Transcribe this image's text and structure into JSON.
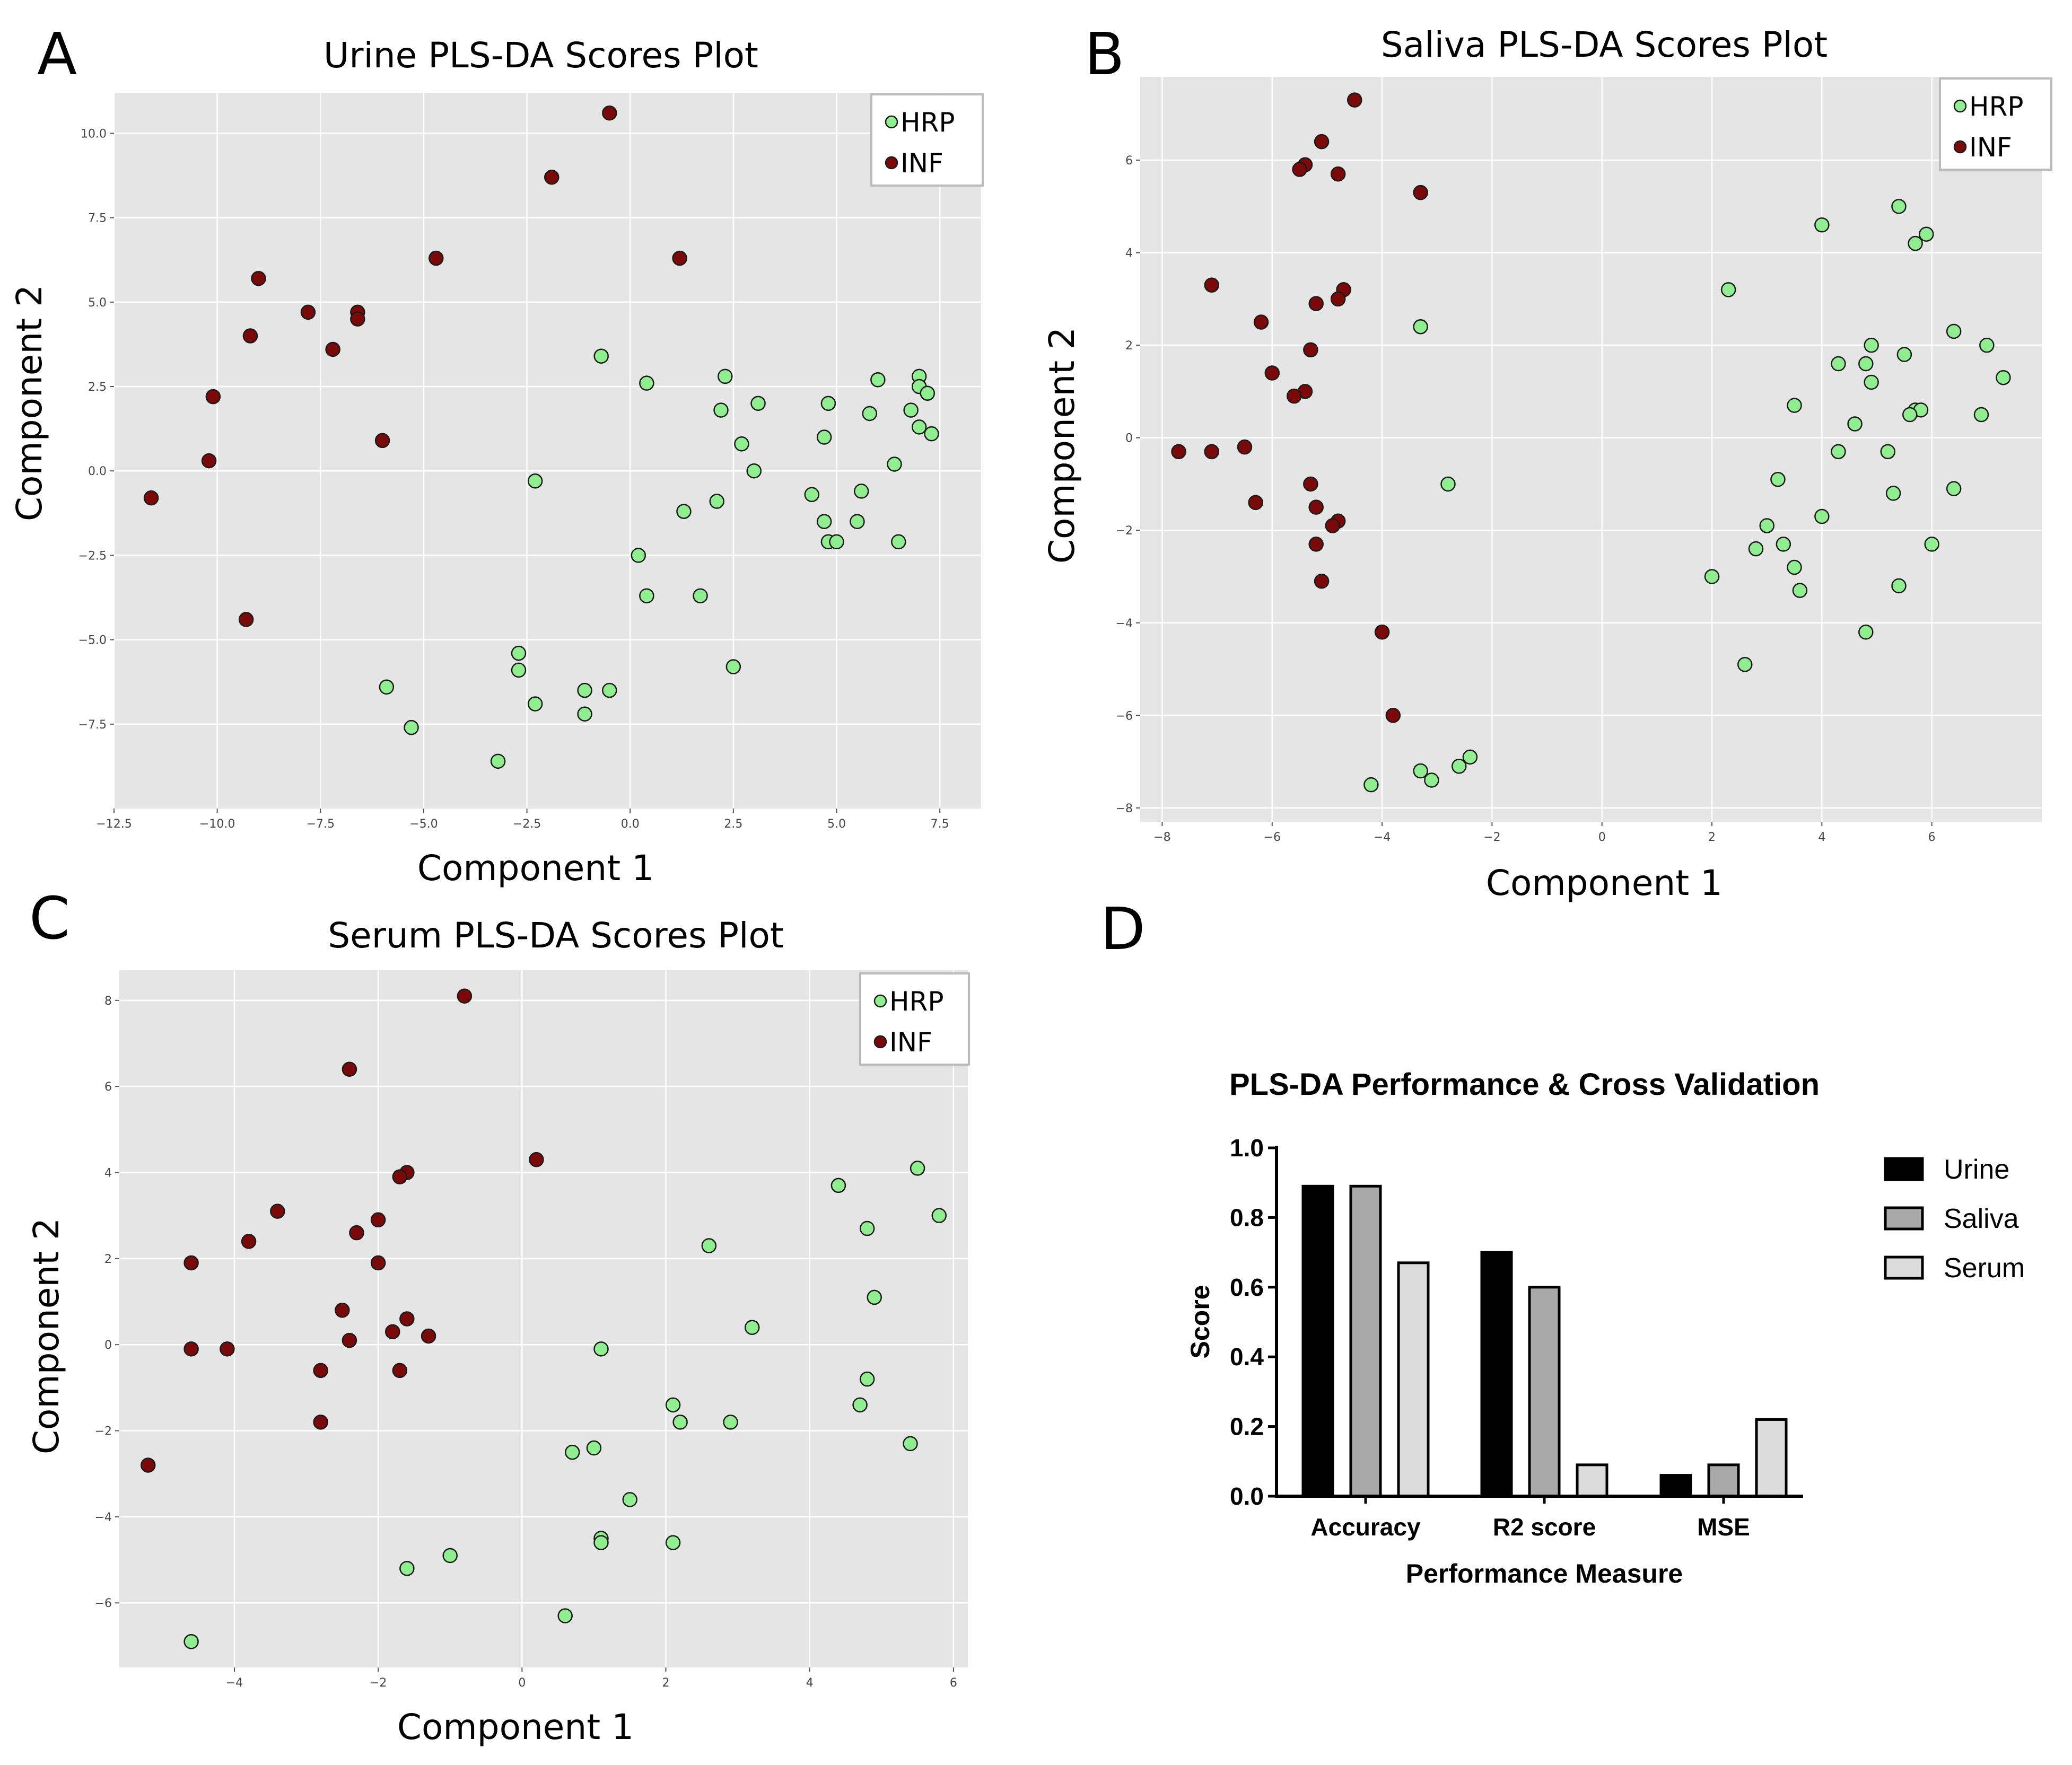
{
  "colors": {
    "hrp": "#90ee90",
    "inf": "#7a0a0a",
    "urine": "#000000",
    "saliva": "#a9a9a9",
    "serum": "#dcdcdc",
    "plot_bg": "#e5e5e5"
  },
  "chart_data": [
    {
      "id": "A",
      "panel_letter": "A",
      "type": "scatter",
      "title": "Urine PLS-DA Scores Plot",
      "xlabel": "Component 1",
      "ylabel": "Component 2",
      "xlim": [
        -12.5,
        8.5
      ],
      "ylim": [
        -10,
        11.2
      ],
      "xticks": [
        -12.5,
        -10,
        -7.5,
        -5,
        -2.5,
        0,
        2.5,
        5,
        7.5
      ],
      "xtick_labels": [
        "−12.5",
        "−10.0",
        "−7.5",
        "−5.0",
        "−2.5",
        "0.0",
        "2.5",
        "5.0",
        "7.5"
      ],
      "yticks": [
        -7.5,
        -5,
        -2.5,
        0,
        2.5,
        5,
        7.5,
        10
      ],
      "ytick_labels": [
        "−7.5",
        "−5.0",
        "−2.5",
        "0.0",
        "2.5",
        "5.0",
        "7.5",
        "10.0"
      ],
      "grid": true,
      "legend_position": "top-right",
      "legend": [
        "HRP",
        "INF"
      ],
      "series": [
        {
          "name": "HRP",
          "color": "#90ee90",
          "points": [
            [
              -0.7,
              3.4
            ],
            [
              0.4,
              2.6
            ],
            [
              2.3,
              2.8
            ],
            [
              2.2,
              1.8
            ],
            [
              3.1,
              2.0
            ],
            [
              4.8,
              2.0
            ],
            [
              5.8,
              1.7
            ],
            [
              6.0,
              2.7
            ],
            [
              7.0,
              2.8
            ],
            [
              7.0,
              2.5
            ],
            [
              7.2,
              2.3
            ],
            [
              6.8,
              1.8
            ],
            [
              7.0,
              1.3
            ],
            [
              7.3,
              1.1
            ],
            [
              4.7,
              1.0
            ],
            [
              2.7,
              0.8
            ],
            [
              3.0,
              0.0
            ],
            [
              6.4,
              0.2
            ],
            [
              -2.3,
              -0.3
            ],
            [
              4.4,
              -0.7
            ],
            [
              5.6,
              -0.6
            ],
            [
              2.1,
              -0.9
            ],
            [
              1.3,
              -1.2
            ],
            [
              4.7,
              -1.5
            ],
            [
              5.5,
              -1.5
            ],
            [
              4.8,
              -2.1
            ],
            [
              5.0,
              -2.1
            ],
            [
              6.5,
              -2.1
            ],
            [
              0.2,
              -2.5
            ],
            [
              0.4,
              -3.7
            ],
            [
              1.7,
              -3.7
            ],
            [
              -2.7,
              -5.4
            ],
            [
              -2.7,
              -5.9
            ],
            [
              2.5,
              -5.8
            ],
            [
              -5.9,
              -6.4
            ],
            [
              -1.1,
              -6.5
            ],
            [
              -0.5,
              -6.5
            ],
            [
              -2.3,
              -6.9
            ],
            [
              -1.1,
              -7.2
            ],
            [
              -5.3,
              -7.6
            ],
            [
              -3.2,
              -8.6
            ]
          ]
        },
        {
          "name": "INF",
          "color": "#7a0a0a",
          "points": [
            [
              -0.5,
              10.6
            ],
            [
              -1.9,
              8.7
            ],
            [
              -4.7,
              6.3
            ],
            [
              1.2,
              6.3
            ],
            [
              -9.0,
              5.7
            ],
            [
              -7.8,
              4.7
            ],
            [
              -6.6,
              4.7
            ],
            [
              -6.6,
              4.5
            ],
            [
              -9.2,
              4.0
            ],
            [
              -7.2,
              3.6
            ],
            [
              -10.1,
              2.2
            ],
            [
              -6.0,
              0.9
            ],
            [
              -10.2,
              0.3
            ],
            [
              -11.6,
              -0.8
            ],
            [
              -9.3,
              -4.4
            ]
          ]
        }
      ]
    },
    {
      "id": "B",
      "panel_letter": "B",
      "type": "scatter",
      "title": "Saliva PLS-DA Scores Plot",
      "xlabel": "Component 1",
      "ylabel": "Component 2",
      "xlim": [
        -8.4,
        8.0
      ],
      "ylim": [
        -8.3,
        7.8
      ],
      "xticks": [
        -8,
        -6,
        -4,
        -2,
        0,
        2,
        4,
        6
      ],
      "xtick_labels": [
        "−8",
        "−6",
        "−4",
        "−2",
        "0",
        "2",
        "4",
        "6"
      ],
      "yticks": [
        -8,
        -6,
        -4,
        -2,
        0,
        2,
        4,
        6
      ],
      "ytick_labels": [
        "−8",
        "−6",
        "−4",
        "−2",
        "0",
        "2",
        "4",
        "6"
      ],
      "grid": true,
      "legend_position": "top-right",
      "legend": [
        "HRP",
        "INF"
      ],
      "series": [
        {
          "name": "HRP",
          "color": "#90ee90",
          "points": [
            [
              5.4,
              5.0
            ],
            [
              4.0,
              4.6
            ],
            [
              5.9,
              4.4
            ],
            [
              5.7,
              4.2
            ],
            [
              2.3,
              3.2
            ],
            [
              -3.3,
              2.4
            ],
            [
              6.4,
              2.3
            ],
            [
              4.9,
              2.0
            ],
            [
              7.0,
              2.0
            ],
            [
              5.5,
              1.8
            ],
            [
              4.3,
              1.6
            ],
            [
              4.8,
              1.6
            ],
            [
              7.3,
              1.3
            ],
            [
              4.9,
              1.2
            ],
            [
              3.5,
              0.7
            ],
            [
              5.7,
              0.6
            ],
            [
              5.8,
              0.6
            ],
            [
              5.6,
              0.5
            ],
            [
              6.9,
              0.5
            ],
            [
              4.6,
              0.3
            ],
            [
              5.2,
              -0.3
            ],
            [
              4.3,
              -0.3
            ],
            [
              3.2,
              -0.9
            ],
            [
              -2.8,
              -1.0
            ],
            [
              6.4,
              -1.1
            ],
            [
              5.3,
              -1.2
            ],
            [
              4.0,
              -1.7
            ],
            [
              3.0,
              -1.9
            ],
            [
              3.3,
              -2.3
            ],
            [
              2.8,
              -2.4
            ],
            [
              6.0,
              -2.3
            ],
            [
              3.5,
              -2.8
            ],
            [
              2.0,
              -3.0
            ],
            [
              5.4,
              -3.2
            ],
            [
              3.6,
              -3.3
            ],
            [
              4.8,
              -4.2
            ],
            [
              2.6,
              -4.9
            ],
            [
              -2.4,
              -6.9
            ],
            [
              -2.6,
              -7.1
            ],
            [
              -3.3,
              -7.2
            ],
            [
              -3.1,
              -7.4
            ],
            [
              -4.2,
              -7.5
            ]
          ]
        },
        {
          "name": "INF",
          "color": "#7a0a0a",
          "points": [
            [
              -4.5,
              7.3
            ],
            [
              -5.1,
              6.4
            ],
            [
              -5.4,
              5.9
            ],
            [
              -5.5,
              5.8
            ],
            [
              -4.8,
              5.7
            ],
            [
              -3.3,
              5.3
            ],
            [
              -7.1,
              3.3
            ],
            [
              -4.7,
              3.2
            ],
            [
              -4.8,
              3.0
            ],
            [
              -5.2,
              2.9
            ],
            [
              -6.2,
              2.5
            ],
            [
              -5.3,
              1.9
            ],
            [
              -6.0,
              1.4
            ],
            [
              -5.4,
              1.0
            ],
            [
              -5.6,
              0.9
            ],
            [
              -6.5,
              -0.2
            ],
            [
              -7.7,
              -0.3
            ],
            [
              -7.1,
              -0.3
            ],
            [
              -5.3,
              -1.0
            ],
            [
              -6.3,
              -1.4
            ],
            [
              -5.2,
              -1.5
            ],
            [
              -4.8,
              -1.8
            ],
            [
              -4.9,
              -1.9
            ],
            [
              -5.2,
              -2.3
            ],
            [
              -5.1,
              -3.1
            ],
            [
              -4.0,
              -4.2
            ],
            [
              -3.8,
              -6.0
            ]
          ]
        }
      ]
    },
    {
      "id": "C",
      "panel_letter": "C",
      "type": "scatter",
      "title": "Serum PLS-DA Scores Plot",
      "xlabel": "Component 1",
      "ylabel": "Component 2",
      "xlim": [
        -5.6,
        6.2
      ],
      "ylim": [
        -7.5,
        8.7
      ],
      "xticks": [
        -4,
        -2,
        0,
        2,
        4,
        6
      ],
      "xtick_labels": [
        "−4",
        "−2",
        "0",
        "2",
        "4",
        "6"
      ],
      "yticks": [
        -6,
        -4,
        -2,
        0,
        2,
        4,
        6,
        8
      ],
      "ytick_labels": [
        "−6",
        "−4",
        "−2",
        "0",
        "2",
        "4",
        "6",
        "8"
      ],
      "grid": true,
      "legend_position": "top-right",
      "legend": [
        "HRP",
        "INF"
      ],
      "series": [
        {
          "name": "HRP",
          "color": "#90ee90",
          "points": [
            [
              5.5,
              4.1
            ],
            [
              4.4,
              3.7
            ],
            [
              5.8,
              3.0
            ],
            [
              4.8,
              2.7
            ],
            [
              2.6,
              2.3
            ],
            [
              4.9,
              1.1
            ],
            [
              3.2,
              0.4
            ],
            [
              1.1,
              -0.1
            ],
            [
              4.8,
              -0.8
            ],
            [
              4.7,
              -1.4
            ],
            [
              2.1,
              -1.4
            ],
            [
              2.2,
              -1.8
            ],
            [
              2.9,
              -1.8
            ],
            [
              5.4,
              -2.3
            ],
            [
              1.0,
              -2.4
            ],
            [
              0.7,
              -2.5
            ],
            [
              1.5,
              -3.6
            ],
            [
              1.1,
              -4.5
            ],
            [
              1.1,
              -4.6
            ],
            [
              2.1,
              -4.6
            ],
            [
              -1.0,
              -4.9
            ],
            [
              -1.6,
              -5.2
            ],
            [
              0.6,
              -6.3
            ],
            [
              -4.6,
              -6.9
            ]
          ]
        },
        {
          "name": "INF",
          "color": "#7a0a0a",
          "points": [
            [
              -0.8,
              8.1
            ],
            [
              -2.4,
              6.4
            ],
            [
              0.2,
              4.3
            ],
            [
              -1.6,
              4.0
            ],
            [
              -1.7,
              3.9
            ],
            [
              -3.4,
              3.1
            ],
            [
              -2.0,
              2.9
            ],
            [
              -2.3,
              2.6
            ],
            [
              -3.8,
              2.4
            ],
            [
              -2.0,
              1.9
            ],
            [
              -4.6,
              1.9
            ],
            [
              -2.5,
              0.8
            ],
            [
              -1.6,
              0.6
            ],
            [
              -1.8,
              0.3
            ],
            [
              -1.3,
              0.2
            ],
            [
              -2.4,
              0.1
            ],
            [
              -4.6,
              -0.1
            ],
            [
              -4.1,
              -0.1
            ],
            [
              -2.8,
              -0.6
            ],
            [
              -1.7,
              -0.6
            ],
            [
              -2.8,
              -1.8
            ],
            [
              -5.2,
              -2.8
            ]
          ]
        }
      ]
    },
    {
      "id": "D",
      "panel_letter": "D",
      "type": "bar",
      "title": "PLS-DA Performance & Cross Validation",
      "xlabel": "Performance Measure",
      "ylabel": "Score",
      "ylim": [
        0,
        1.0
      ],
      "yticks": [
        0,
        0.2,
        0.4,
        0.6,
        0.8,
        1.0
      ],
      "ytick_labels": [
        "0.0",
        "0.2",
        "0.4",
        "0.6",
        "0.8",
        "1.0"
      ],
      "categories": [
        "Accuracy",
        "R2 score",
        "MSE"
      ],
      "legend_position": "right",
      "series": [
        {
          "name": "Urine",
          "color": "#000000",
          "values": [
            0.89,
            0.7,
            0.06
          ]
        },
        {
          "name": "Saliva",
          "color": "#a9a9a9",
          "values": [
            0.89,
            0.6,
            0.09
          ]
        },
        {
          "name": "Serum",
          "color": "#dcdcdc",
          "values": [
            0.67,
            0.09,
            0.22
          ]
        }
      ]
    }
  ]
}
